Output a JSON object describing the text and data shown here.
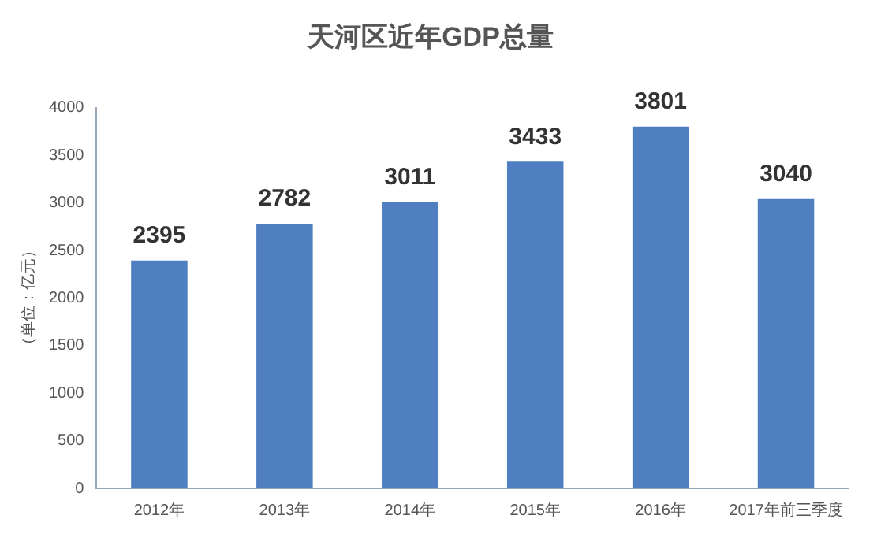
{
  "chart_data": {
    "type": "bar",
    "title": "天河区近年GDP总量",
    "ylabel": "（单位：亿元）",
    "categories": [
      "2012年",
      "2013年",
      "2014年",
      "2015年",
      "2016年",
      "2017年前三季度"
    ],
    "values": [
      2395,
      2782,
      3011,
      3433,
      3801,
      3040
    ],
    "color": "#4f7fc0",
    "ylim": [
      0,
      4000
    ],
    "yticks": [
      0,
      500,
      1000,
      1500,
      2000,
      2500,
      3000,
      3500,
      4000
    ],
    "grid": false,
    "data_labels": true
  }
}
